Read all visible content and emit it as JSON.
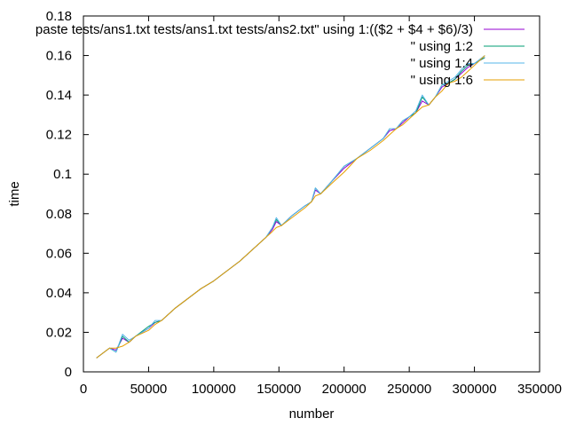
{
  "chart_data": {
    "type": "line",
    "title": "",
    "xlabel": "number",
    "ylabel": "time",
    "xlim": [
      0,
      350000
    ],
    "ylim": [
      0,
      0.18
    ],
    "grid": false,
    "legend_position": "top-right",
    "x_ticks": [
      0,
      50000,
      100000,
      150000,
      200000,
      250000,
      300000,
      350000
    ],
    "x_tick_labels": [
      "0",
      "50000",
      "100000",
      "150000",
      "200000",
      "250000",
      "300000",
      "350000"
    ],
    "y_ticks": [
      0,
      0.02,
      0.04,
      0.06,
      0.08,
      0.1,
      0.12,
      0.14,
      0.16,
      0.18
    ],
    "y_tick_labels": [
      "0",
      "0.02",
      "0.04",
      "0.06",
      "0.08",
      "0.1",
      "0.12",
      "0.14",
      "0.16",
      "0.18"
    ],
    "series": [
      {
        "name": "paste tests/ans1.txt tests/ans1.txt tests/ans2.txt\" using 1:(($2 + $4 + $6)/3)",
        "color": "#9400d3",
        "x": [
          10000,
          20000,
          25000,
          30000,
          35000,
          40000,
          50000,
          55000,
          60000,
          70000,
          80000,
          90000,
          100000,
          110000,
          120000,
          130000,
          140000,
          145000,
          148000,
          152000,
          160000,
          170000,
          175000,
          178000,
          182000,
          190000,
          200000,
          210000,
          220000,
          230000,
          235000,
          240000,
          245000,
          250000,
          255000,
          260000,
          265000,
          270000,
          275000,
          280000,
          285000,
          290000,
          295000,
          300000,
          308000
        ],
        "y": [
          0.007,
          0.012,
          0.011,
          0.017,
          0.015,
          0.018,
          0.022,
          0.025,
          0.026,
          0.032,
          0.037,
          0.042,
          0.046,
          0.051,
          0.056,
          0.062,
          0.068,
          0.072,
          0.076,
          0.074,
          0.079,
          0.084,
          0.086,
          0.092,
          0.09,
          0.096,
          0.103,
          0.108,
          0.113,
          0.118,
          0.122,
          0.123,
          0.126,
          0.129,
          0.131,
          0.137,
          0.135,
          0.139,
          0.144,
          0.146,
          0.148,
          0.151,
          0.154,
          0.156,
          0.159
        ]
      },
      {
        "name": "\" using 1:2",
        "color": "#009e73",
        "x": [
          10000,
          20000,
          25000,
          30000,
          35000,
          40000,
          50000,
          55000,
          60000,
          70000,
          80000,
          90000,
          100000,
          110000,
          120000,
          130000,
          140000,
          145000,
          148000,
          152000,
          160000,
          170000,
          175000,
          178000,
          182000,
          190000,
          200000,
          210000,
          220000,
          230000,
          235000,
          240000,
          245000,
          250000,
          255000,
          260000,
          265000,
          270000,
          275000,
          280000,
          285000,
          290000,
          295000,
          300000,
          308000
        ],
        "y": [
          0.007,
          0.012,
          0.01,
          0.018,
          0.015,
          0.018,
          0.023,
          0.025,
          0.026,
          0.032,
          0.037,
          0.042,
          0.046,
          0.051,
          0.056,
          0.062,
          0.068,
          0.073,
          0.077,
          0.074,
          0.079,
          0.084,
          0.086,
          0.093,
          0.09,
          0.096,
          0.104,
          0.108,
          0.113,
          0.118,
          0.123,
          0.123,
          0.127,
          0.129,
          0.131,
          0.139,
          0.135,
          0.139,
          0.145,
          0.146,
          0.148,
          0.152,
          0.155,
          0.156,
          0.159
        ]
      },
      {
        "name": "\" using 1:4",
        "color": "#56b4e9",
        "x": [
          10000,
          20000,
          25000,
          30000,
          35000,
          40000,
          50000,
          55000,
          60000,
          70000,
          80000,
          90000,
          100000,
          110000,
          120000,
          130000,
          140000,
          145000,
          148000,
          152000,
          160000,
          170000,
          175000,
          178000,
          182000,
          190000,
          200000,
          210000,
          220000,
          230000,
          235000,
          240000,
          245000,
          250000,
          255000,
          260000,
          265000,
          270000,
          275000,
          280000,
          285000,
          290000,
          295000,
          300000,
          308000
        ],
        "y": [
          0.007,
          0.012,
          0.01,
          0.019,
          0.016,
          0.018,
          0.022,
          0.026,
          0.026,
          0.032,
          0.037,
          0.042,
          0.046,
          0.051,
          0.056,
          0.062,
          0.068,
          0.073,
          0.078,
          0.074,
          0.079,
          0.084,
          0.086,
          0.093,
          0.09,
          0.096,
          0.104,
          0.108,
          0.113,
          0.118,
          0.123,
          0.123,
          0.127,
          0.129,
          0.132,
          0.14,
          0.135,
          0.139,
          0.145,
          0.147,
          0.149,
          0.153,
          0.156,
          0.156,
          0.16
        ]
      },
      {
        "name": "\" using 1:6",
        "color": "#e69f00",
        "x": [
          10000,
          20000,
          25000,
          30000,
          35000,
          40000,
          50000,
          55000,
          60000,
          70000,
          80000,
          90000,
          100000,
          110000,
          120000,
          130000,
          140000,
          145000,
          148000,
          152000,
          160000,
          170000,
          175000,
          178000,
          182000,
          190000,
          200000,
          210000,
          220000,
          230000,
          235000,
          240000,
          245000,
          250000,
          255000,
          260000,
          265000,
          270000,
          275000,
          280000,
          285000,
          290000,
          295000,
          300000,
          308000
        ],
        "y": [
          0.007,
          0.012,
          0.012,
          0.013,
          0.015,
          0.018,
          0.021,
          0.024,
          0.026,
          0.032,
          0.037,
          0.042,
          0.046,
          0.051,
          0.056,
          0.062,
          0.068,
          0.071,
          0.073,
          0.074,
          0.078,
          0.083,
          0.086,
          0.089,
          0.09,
          0.095,
          0.101,
          0.108,
          0.112,
          0.117,
          0.12,
          0.123,
          0.125,
          0.128,
          0.131,
          0.134,
          0.135,
          0.139,
          0.142,
          0.146,
          0.147,
          0.149,
          0.152,
          0.155,
          0.16
        ]
      }
    ]
  }
}
